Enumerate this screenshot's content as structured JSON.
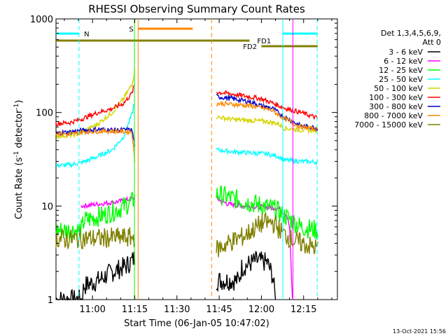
{
  "chart_data": {
    "type": "line",
    "title": "RHESSI Observing Summary Count Rates",
    "xlabel": "Start Time (06-Jan-05 10:47:02)",
    "ylabel_parts": [
      "Count Rate (s",
      "-1",
      " detector",
      "-1",
      ")"
    ],
    "x_range_minutes": [
      "10:47:02",
      "12:27:00"
    ],
    "ylim": [
      1,
      1000
    ],
    "yscale": "log",
    "xtick_labels": [
      "11:00",
      "11:15",
      "11:30",
      "11:45",
      "12:00",
      "12:15"
    ],
    "xtick_minutes": [
      660,
      675,
      690,
      705,
      720,
      735
    ],
    "ytick_labels": [
      "1",
      "10",
      "100",
      "1000"
    ],
    "ytick_values": [
      1,
      10,
      100,
      1000
    ],
    "legend": {
      "header": [
        "Det 1,3,4,5,6,9,",
        "Att 0"
      ],
      "placement": "right"
    },
    "gap": [
      675.5,
      703.5
    ],
    "series": [
      {
        "name": "3 - 6 keV",
        "color": "#000000",
        "pre": [
          [
            647,
            1
          ],
          [
            656,
            1
          ],
          [
            657,
            1.4
          ],
          [
            662,
            1.6
          ],
          [
            666,
            1.9
          ],
          [
            672,
            2.3
          ],
          [
            674,
            2.6
          ],
          [
            675,
            2.8
          ]
        ],
        "post": [
          [
            704,
            1.6
          ],
          [
            712,
            1.6
          ],
          [
            713,
            2.2
          ],
          [
            718,
            2.6
          ],
          [
            722,
            2.5
          ],
          [
            724,
            1.8
          ],
          [
            725,
            1
          ]
        ],
        "noisy": true
      },
      {
        "name": "6 - 12 keV",
        "color": "#ff00ff",
        "pre": [
          [
            656,
            10
          ],
          [
            662,
            10.5
          ],
          [
            668,
            11
          ],
          [
            673,
            11.8
          ],
          [
            675,
            12
          ]
        ],
        "post": [
          [
            704,
            12
          ],
          [
            708,
            10.5
          ],
          [
            714,
            10
          ],
          [
            720,
            9.8
          ],
          [
            726,
            9.5
          ],
          [
            729,
            8
          ],
          [
            730,
            6
          ],
          [
            731,
            1
          ]
        ],
        "noisy": false
      },
      {
        "name": "12 - 25 keV",
        "color": "#00ff00",
        "pre": [
          [
            647,
            5.5
          ],
          [
            656,
            5.5
          ],
          [
            657,
            7
          ],
          [
            664,
            8
          ],
          [
            670,
            9.5
          ],
          [
            674,
            11
          ],
          [
            675,
            12
          ]
        ],
        "post": [
          [
            704,
            13.5
          ],
          [
            710,
            12
          ],
          [
            718,
            10.5
          ],
          [
            724,
            9.5
          ],
          [
            728,
            8
          ],
          [
            734,
            6
          ],
          [
            740,
            5.5
          ]
        ],
        "noisy": true
      },
      {
        "name": "25 - 50 keV",
        "color": "#00ffff",
        "pre": [
          [
            647,
            27
          ],
          [
            652,
            27.5
          ],
          [
            656,
            29
          ],
          [
            662,
            34
          ],
          [
            667,
            40
          ],
          [
            671,
            55
          ],
          [
            674,
            95
          ],
          [
            675,
            130
          ]
        ],
        "post": [
          [
            704,
            40
          ],
          [
            710,
            38
          ],
          [
            716,
            37
          ],
          [
            722,
            36
          ],
          [
            726,
            34
          ],
          [
            728,
            31
          ],
          [
            734,
            30
          ],
          [
            740,
            29.5
          ]
        ],
        "noisy": false
      },
      {
        "name": "50 - 100 keV",
        "color": "#00ffff",
        "pre": [
          [
            647,
            56
          ],
          [
            652,
            57
          ],
          [
            656,
            60
          ],
          [
            662,
            76
          ],
          [
            667,
            100
          ],
          [
            671,
            140
          ],
          [
            674,
            200
          ],
          [
            675,
            280
          ]
        ],
        "post": [
          [
            704,
            90
          ],
          [
            710,
            84
          ],
          [
            716,
            82
          ],
          [
            722,
            80
          ],
          [
            726,
            76
          ],
          [
            728,
            68
          ],
          [
            734,
            65
          ],
          [
            740,
            64
          ]
        ],
        "noisy": false,
        "draw_color": "#d4d400"
      },
      {
        "name": "100 - 300 keV",
        "color": "#ff0000",
        "pre": [
          [
            647,
            76
          ],
          [
            652,
            78
          ],
          [
            656,
            85
          ],
          [
            662,
            100
          ],
          [
            667,
            110
          ],
          [
            671,
            125
          ],
          [
            674,
            160
          ],
          [
            675,
            200
          ]
        ],
        "post": [
          [
            704,
            165
          ],
          [
            708,
            160
          ],
          [
            714,
            150
          ],
          [
            720,
            140
          ],
          [
            724,
            126
          ],
          [
            728,
            112
          ],
          [
            734,
            100
          ],
          [
            740,
            87
          ]
        ],
        "noisy": false
      },
      {
        "name": "300 - 800 keV",
        "color": "#0000cc",
        "pre": [
          [
            647,
            60
          ],
          [
            652,
            62
          ],
          [
            656,
            64
          ],
          [
            662,
            66
          ],
          [
            668,
            65
          ],
          [
            674,
            65
          ],
          [
            675,
            45
          ]
        ],
        "post": [
          [
            704,
            148
          ],
          [
            710,
            140
          ],
          [
            716,
            130
          ],
          [
            720,
            118
          ],
          [
            724,
            110
          ],
          [
            728,
            90
          ],
          [
            734,
            72
          ],
          [
            740,
            68
          ]
        ],
        "noisy": false
      },
      {
        "name": "800 - 7000 keV",
        "color": "#ff8800",
        "pre": [
          [
            647,
            60
          ],
          [
            652,
            58
          ],
          [
            656,
            62
          ],
          [
            662,
            63
          ],
          [
            668,
            63
          ],
          [
            674,
            62
          ],
          [
            675,
            30
          ]
        ],
        "post": [
          [
            704,
            125
          ],
          [
            710,
            122
          ],
          [
            716,
            118
          ],
          [
            720,
            112
          ],
          [
            724,
            105
          ],
          [
            728,
            86
          ],
          [
            734,
            70
          ],
          [
            740,
            66
          ]
        ],
        "noisy": false
      },
      {
        "name": "7000 - 15000 keV",
        "color": "#808000",
        "pre": [
          [
            647,
            4.5
          ],
          [
            652,
            4.4
          ],
          [
            656,
            4.5
          ],
          [
            662,
            4.5
          ],
          [
            668,
            4.6
          ],
          [
            674,
            4.6
          ],
          [
            675,
            4.6
          ]
        ],
        "post": [
          [
            704,
            3.4
          ],
          [
            708,
            4
          ],
          [
            714,
            4.8
          ],
          [
            720,
            6.5
          ],
          [
            724,
            6.7
          ],
          [
            728,
            5
          ],
          [
            732,
            4.2
          ],
          [
            740,
            3.5
          ]
        ],
        "noisy": true
      }
    ],
    "vlines": [
      {
        "x": 655.2,
        "color": "#00ffff",
        "style": "dash"
      },
      {
        "x": 674.9,
        "color": "#00ff00",
        "style": "solid"
      },
      {
        "x": 676.2,
        "color": "#ff8800",
        "style": "solid"
      },
      {
        "x": 702.3,
        "color": "#ff8800",
        "style": "dash"
      },
      {
        "x": 727.6,
        "color": "#00ffff",
        "style": "solid"
      },
      {
        "x": 731.2,
        "color": "#ff00ff",
        "style": "solid"
      },
      {
        "x": 739.8,
        "color": "#00ffff",
        "style": "dash"
      }
    ],
    "flag_bars": [
      {
        "label": "N",
        "color": "#00ffff",
        "segments": [
          [
            647,
            655.2
          ],
          [
            727.6,
            740
          ]
        ],
        "label_x": 657,
        "level": 0
      },
      {
        "label": "S",
        "color": "#ff8800",
        "segments": [
          [
            676.2,
            695.6
          ]
        ],
        "label_x": 673,
        "level": -1
      },
      {
        "label": "FD1",
        "color": "#808000",
        "segments": [
          [
            647,
            715.8
          ]
        ],
        "label_x": 718.5,
        "level": 1
      },
      {
        "label": "FD2",
        "color": "#808000",
        "segments": [
          [
            720,
            740
          ]
        ],
        "label_x": 713.5,
        "level": 2
      }
    ]
  },
  "footer_date": "13-Oct-2021 15:56"
}
